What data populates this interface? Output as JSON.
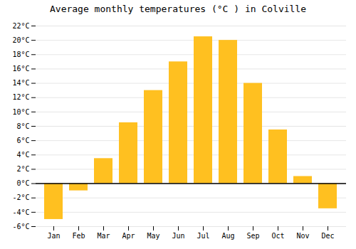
{
  "chart_data": {
    "type": "bar",
    "title": "Average monthly temperatures (°C ) in Colville",
    "categories": [
      "Jan",
      "Feb",
      "Mar",
      "Apr",
      "May",
      "Jun",
      "Jul",
      "Aug",
      "Sep",
      "Oct",
      "Nov",
      "Dec"
    ],
    "values": [
      -5.0,
      -1.0,
      3.5,
      8.5,
      13.0,
      17.0,
      20.5,
      20.0,
      14.0,
      7.5,
      1.0,
      -3.5
    ],
    "color": "#FFC020",
    "ylim": [
      -6,
      22
    ],
    "yticks": [
      {
        "value": -6,
        "label": "-6°C"
      },
      {
        "value": -4,
        "label": "-4°C"
      },
      {
        "value": -2,
        "label": "-2°C"
      },
      {
        "value": 0,
        "label": "0°C"
      },
      {
        "value": 2,
        "label": "2°C"
      },
      {
        "value": 4,
        "label": "4°C"
      },
      {
        "value": 6,
        "label": "6°C"
      },
      {
        "value": 8,
        "label": "8°C"
      },
      {
        "value": 10,
        "label": "10°C"
      },
      {
        "value": 12,
        "label": "12°C"
      },
      {
        "value": 14,
        "label": "14°C"
      },
      {
        "value": 16,
        "label": "16°C"
      },
      {
        "value": 18,
        "label": "18°C"
      },
      {
        "value": 20,
        "label": "20°C"
      },
      {
        "value": 22,
        "label": "22°C"
      }
    ],
    "grid": true
  }
}
